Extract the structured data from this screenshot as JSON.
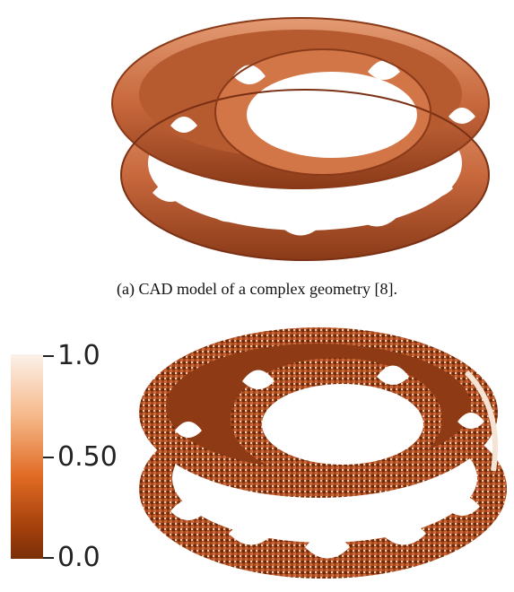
{
  "figure_a": {
    "caption": "(a)  CAD model of a complex geometry [8]."
  },
  "figure_b": {
    "colorbar": {
      "top_label": "1.0",
      "mid_label": "0.50",
      "bottom_label": "0.0"
    }
  },
  "colors": {
    "surface": "#c8683d",
    "surface_dark": "#8a3a18",
    "surface_light": "#e39a72",
    "voxel_dark": "#6b2a0c",
    "voxel_light": "#f2c9a8"
  }
}
